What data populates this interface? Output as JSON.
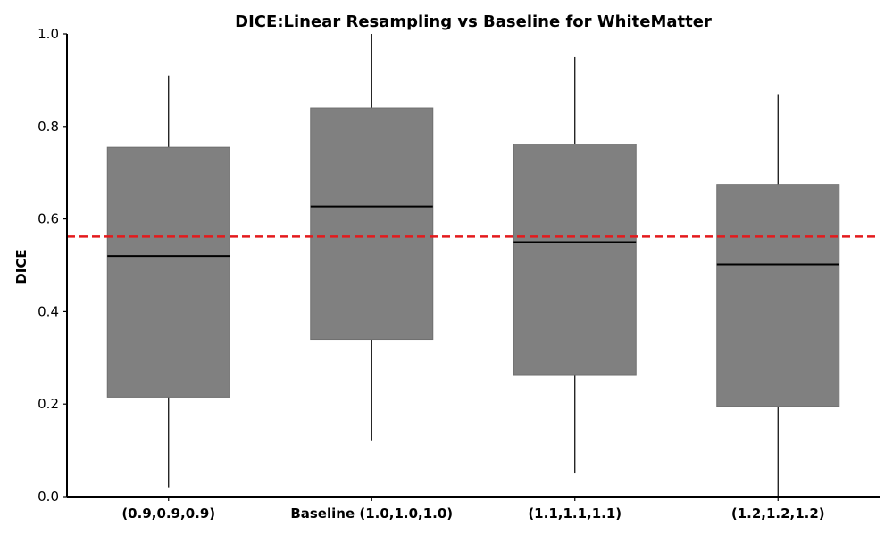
{
  "chart_data": {
    "type": "box",
    "title": "DICE:Linear Resampling vs Baseline for WhiteMatter",
    "xlabel": "",
    "ylabel": "DICE",
    "ylim": [
      0.0,
      1.0
    ],
    "yticks": [
      "0.0",
      "0.2",
      "0.4",
      "0.6",
      "0.8",
      "1.0"
    ],
    "categories": [
      "(0.9,0.9,0.9)",
      "Baseline (1.0,1.0,1.0)",
      "(1.1,1.1,1.1)",
      "(1.2,1.2,1.2)"
    ],
    "boxes": [
      {
        "whisker_low": 0.02,
        "q1": 0.215,
        "median": 0.52,
        "q3": 0.755,
        "whisker_high": 0.91
      },
      {
        "whisker_low": 0.12,
        "q1": 0.34,
        "median": 0.627,
        "q3": 0.84,
        "whisker_high": 1.0
      },
      {
        "whisker_low": 0.05,
        "q1": 0.262,
        "median": 0.55,
        "q3": 0.762,
        "whisker_high": 0.95
      },
      {
        "whisker_low": 0.0,
        "q1": 0.195,
        "median": 0.502,
        "q3": 0.675,
        "whisker_high": 0.87
      }
    ],
    "reference_line": {
      "value": 0.562,
      "style": "dashed",
      "color": "#e41a1c"
    },
    "box_color": "#808080",
    "median_color": "#000000",
    "grid": false,
    "legend": "none"
  }
}
